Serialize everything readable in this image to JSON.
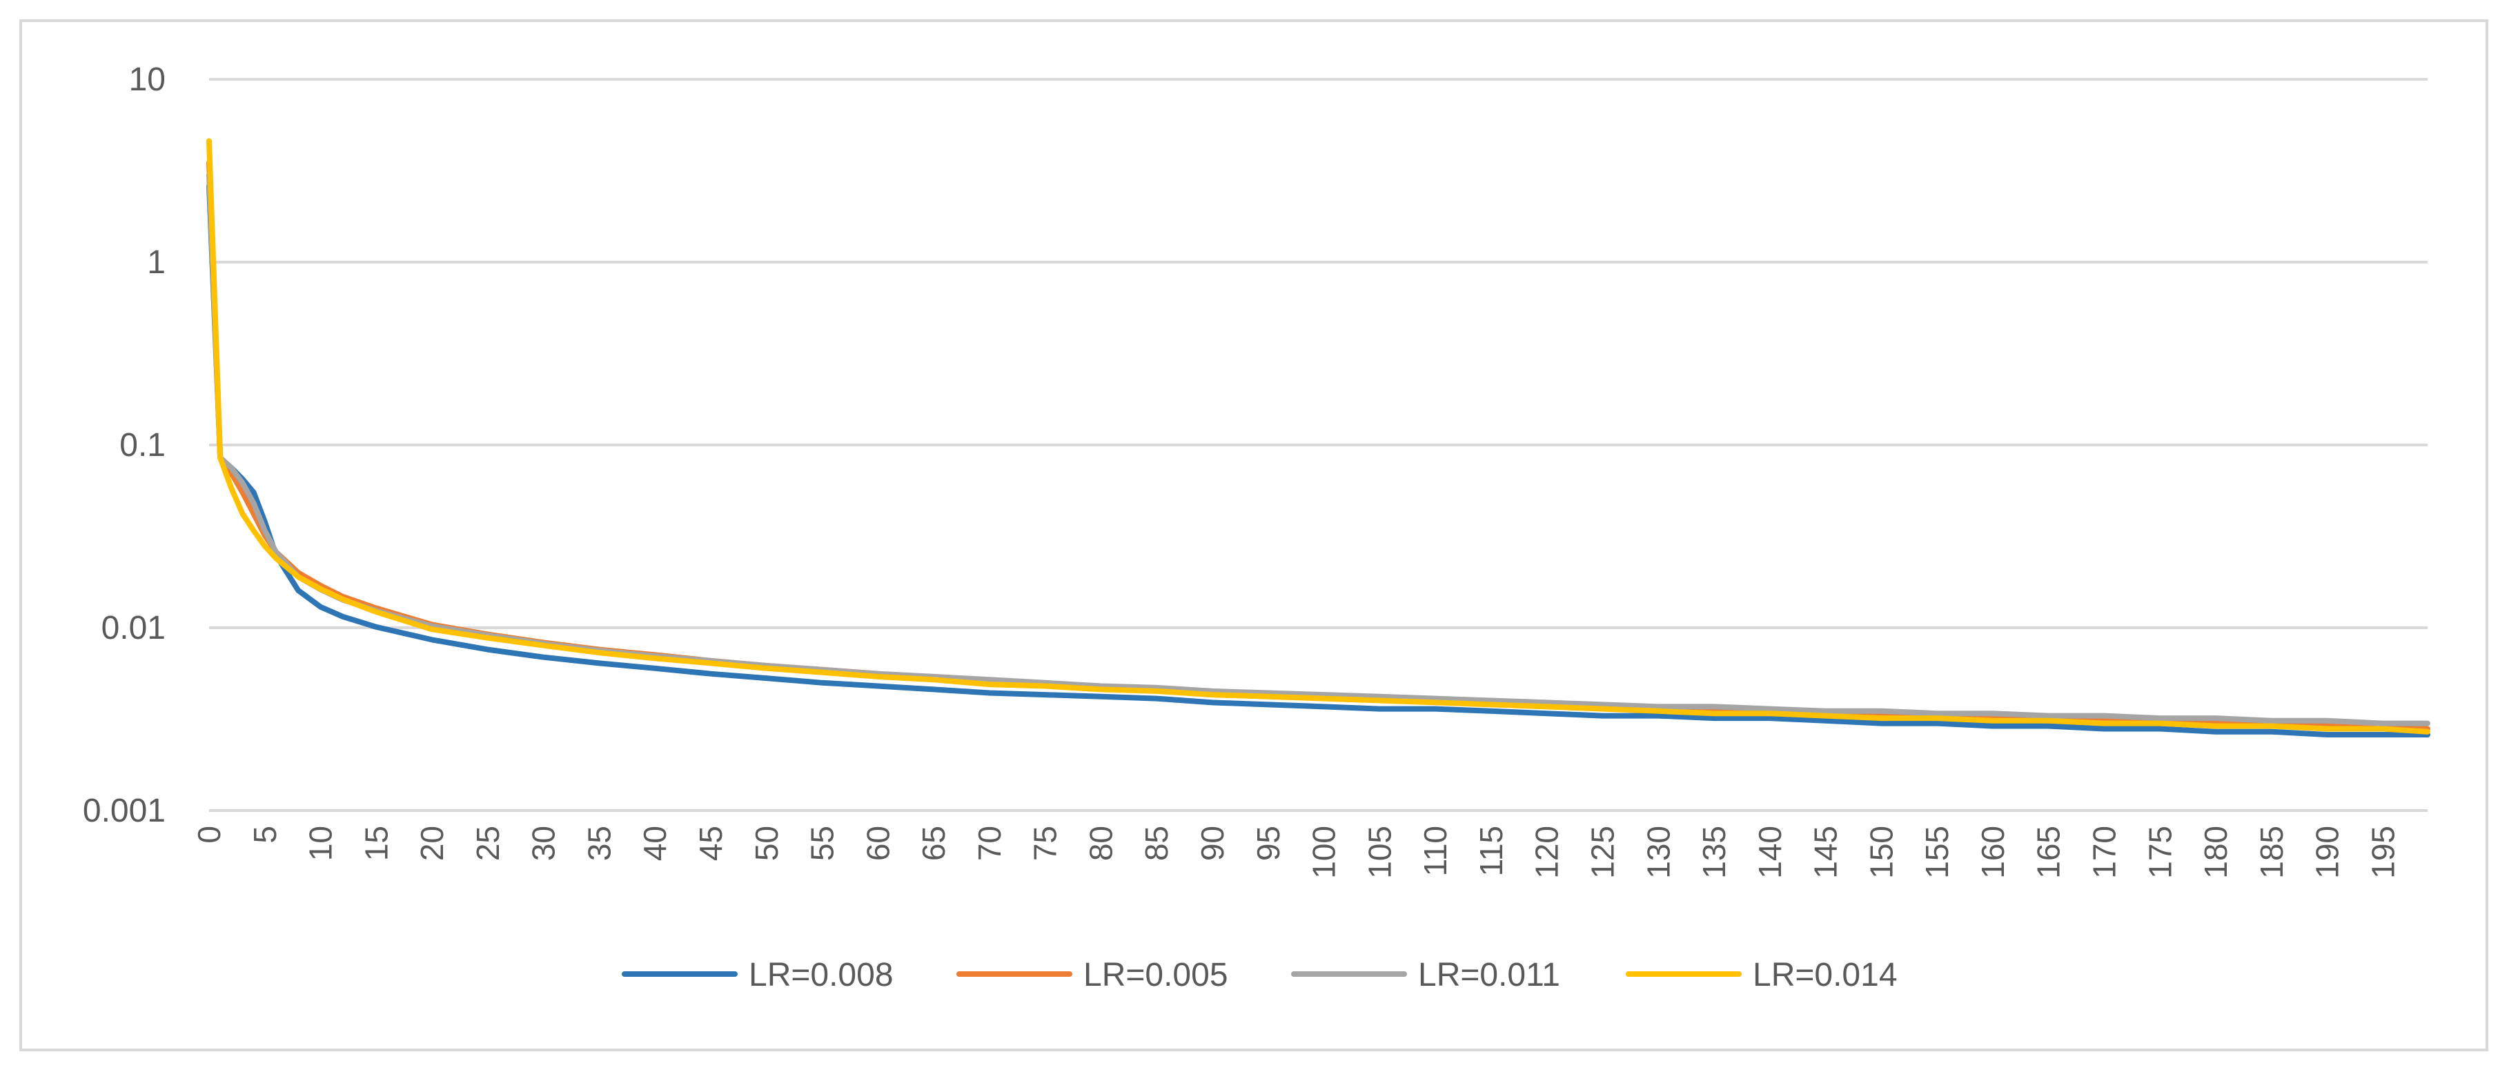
{
  "chart_data": {
    "type": "line",
    "title": "",
    "xlabel": "",
    "ylabel": "",
    "y_scale": "log",
    "ylim": [
      0.001,
      10
    ],
    "y_ticks": [
      "0.001",
      "0.01",
      "0.1",
      "1",
      "10"
    ],
    "y_tick_values": [
      0.001,
      0.01,
      0.1,
      1,
      10
    ],
    "xlim": [
      0,
      199
    ],
    "x_tick_labels": [
      "0",
      "5",
      "10",
      "15",
      "20",
      "25",
      "30",
      "35",
      "40",
      "45",
      "50",
      "55",
      "60",
      "65",
      "70",
      "75",
      "80",
      "85",
      "90",
      "95",
      "100",
      "105",
      "110",
      "115",
      "120",
      "125",
      "130",
      "135",
      "140",
      "145",
      "150",
      "155",
      "160",
      "165",
      "170",
      "175",
      "180",
      "185",
      "190",
      "195"
    ],
    "grid": "horizontal",
    "legend_position": "bottom",
    "x": [
      0,
      1,
      2,
      3,
      4,
      5,
      6,
      8,
      10,
      12,
      15,
      20,
      25,
      30,
      35,
      40,
      45,
      50,
      55,
      60,
      65,
      70,
      75,
      80,
      85,
      90,
      95,
      100,
      105,
      110,
      115,
      120,
      125,
      130,
      135,
      140,
      145,
      150,
      155,
      160,
      165,
      170,
      175,
      180,
      185,
      190,
      195,
      199
    ],
    "series": [
      {
        "name": "LR=0.008",
        "color": "#2E75B6",
        "values": [
          2.6,
          0.085,
          0.075,
          0.065,
          0.055,
          0.038,
          0.025,
          0.016,
          0.013,
          0.0115,
          0.0101,
          0.0086,
          0.0076,
          0.0069,
          0.0064,
          0.006,
          0.0056,
          0.0053,
          0.005,
          0.0048,
          0.0046,
          0.0044,
          0.0043,
          0.0042,
          0.0041,
          0.0039,
          0.0038,
          0.0037,
          0.0036,
          0.0036,
          0.0035,
          0.0034,
          0.0033,
          0.0033,
          0.0032,
          0.0032,
          0.0031,
          0.003,
          0.003,
          0.0029,
          0.0029,
          0.0028,
          0.0028,
          0.0027,
          0.0027,
          0.0026,
          0.0026,
          0.0026
        ]
      },
      {
        "name": "LR=0.005",
        "color": "#ED7D31",
        "values": [
          3.5,
          0.085,
          0.07,
          0.055,
          0.042,
          0.032,
          0.026,
          0.02,
          0.017,
          0.0148,
          0.0128,
          0.0104,
          0.0092,
          0.0083,
          0.0076,
          0.0071,
          0.0066,
          0.0062,
          0.0059,
          0.0056,
          0.0053,
          0.0051,
          0.0049,
          0.0047,
          0.0046,
          0.0044,
          0.0043,
          0.0042,
          0.0041,
          0.004,
          0.0039,
          0.0038,
          0.0037,
          0.0036,
          0.0035,
          0.0035,
          0.0034,
          0.0033,
          0.0033,
          0.0032,
          0.0031,
          0.0031,
          0.003,
          0.003,
          0.0029,
          0.0029,
          0.0028,
          0.0028
        ]
      },
      {
        "name": "LR=0.011",
        "color": "#A5A5A5",
        "values": [
          3.0,
          0.085,
          0.075,
          0.062,
          0.048,
          0.034,
          0.026,
          0.019,
          0.0162,
          0.0142,
          0.0124,
          0.0102,
          0.0091,
          0.0082,
          0.0075,
          0.007,
          0.0066,
          0.0062,
          0.0059,
          0.0056,
          0.0054,
          0.0052,
          0.005,
          0.0048,
          0.0047,
          0.0045,
          0.0044,
          0.0043,
          0.0042,
          0.0041,
          0.004,
          0.0039,
          0.0038,
          0.0037,
          0.0037,
          0.0036,
          0.0035,
          0.0035,
          0.0034,
          0.0034,
          0.0033,
          0.0033,
          0.0032,
          0.0032,
          0.0031,
          0.0031,
          0.003,
          0.003
        ]
      },
      {
        "name": "LR=0.014",
        "color": "#FFC000",
        "values": [
          4.6,
          0.085,
          0.058,
          0.042,
          0.034,
          0.028,
          0.024,
          0.019,
          0.0163,
          0.0143,
          0.0122,
          0.0098,
          0.0088,
          0.008,
          0.0073,
          0.0068,
          0.0064,
          0.006,
          0.0057,
          0.0054,
          0.0052,
          0.0049,
          0.0048,
          0.0046,
          0.0045,
          0.0043,
          0.0042,
          0.0041,
          0.004,
          0.0039,
          0.0038,
          0.0037,
          0.0036,
          0.0035,
          0.0034,
          0.0034,
          0.0033,
          0.0032,
          0.0032,
          0.0031,
          0.0031,
          0.003,
          0.003,
          0.0029,
          0.0029,
          0.0028,
          0.0028,
          0.0027
        ]
      }
    ]
  }
}
